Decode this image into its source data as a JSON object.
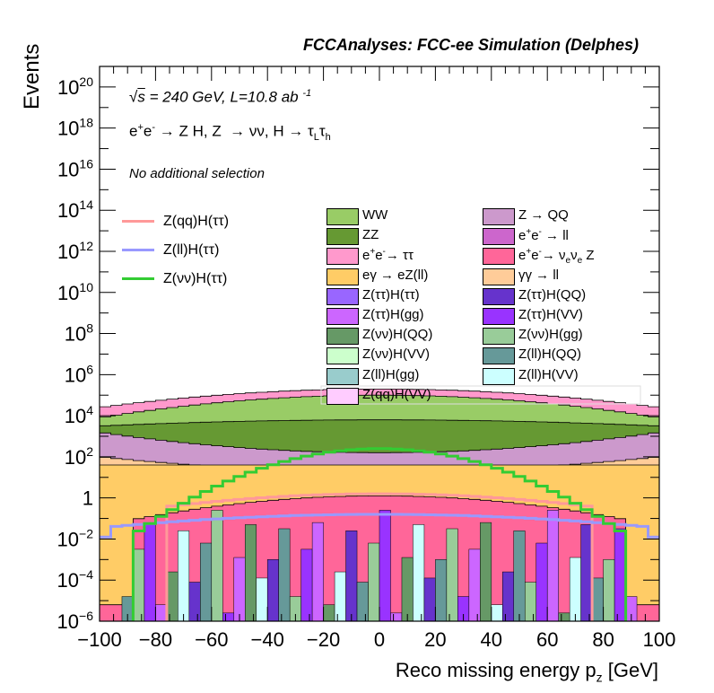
{
  "header": "FCCAnalyses: FCC-ee Simulation (Delphes)",
  "info": {
    "line1_pre": "s",
    "line1_post": " = 240 GeV, L=10.8 ab",
    "line1_exp": "-1",
    "process_html": "e<sup>+</sup>e<sup>-</sup> &rarr; Z H, Z &nbsp;&rarr; &nu;&nu;, H &rarr; &tau;<sub>L</sub>&tau;<sub>h</sub>",
    "selection": "No additional selection"
  },
  "axes": {
    "xlabel_html": "Reco missing energy p<sub>z</sub> [GeV]",
    "ylabel": "Events",
    "xticks": [
      "−100",
      "−80",
      "−60",
      "−40",
      "−20",
      "0",
      "20",
      "40",
      "60",
      "80",
      "100"
    ],
    "ytick_exps": [
      "−6",
      "−4",
      "−2",
      "",
      "2",
      "4",
      "6",
      "8",
      "10",
      "12",
      "14",
      "16",
      "18",
      "20"
    ]
  },
  "legend_lines": [
    {
      "label": "Z(qq)H(ττ)",
      "color": "#ff9999"
    },
    {
      "label": "Z(ll)H(ττ)",
      "color": "#9999ff"
    },
    {
      "label": "Z(νν)H(ττ)",
      "color": "#33cc33"
    }
  ],
  "legend_boxes": [
    {
      "label_html": "WW",
      "color": "#99cc66"
    },
    {
      "label_html": "Z &rarr; QQ",
      "color": "#cc99cc"
    },
    {
      "label_html": "ZZ",
      "color": "#669933"
    },
    {
      "label_html": "e<sup>+</sup>e<sup>-</sup> &rarr; ll",
      "color": "#cc66cc"
    },
    {
      "label_html": "e<sup>+</sup>e<sup>-</sup>&rarr; &tau;&tau;",
      "color": "#ff99cc"
    },
    {
      "label_html": "e<sup>+</sup>e<sup>-</sup>&rarr; &nu;<sub>e</sub>&nu;<sub>e</sub> Z",
      "color": "#ff6699"
    },
    {
      "label_html": "e&gamma; &rarr; eZ(ll)",
      "color": "#ffcc66"
    },
    {
      "label_html": "&gamma;&gamma; &rarr; ll",
      "color": "#ffcc99"
    },
    {
      "label_html": "Z(&tau;&tau;)H(&tau;&tau;)",
      "color": "#9966ff"
    },
    {
      "label_html": "Z(&tau;&tau;)H(QQ)",
      "color": "#6633cc"
    },
    {
      "label_html": "Z(&tau;&tau;)H(gg)",
      "color": "#cc66ff"
    },
    {
      "label_html": "Z(&tau;&tau;)H(VV)",
      "color": "#9933ff"
    },
    {
      "label_html": "Z(&nu;&nu;)H(QQ)",
      "color": "#669966"
    },
    {
      "label_html": "Z(&nu;&nu;)H(gg)",
      "color": "#99cc99"
    },
    {
      "label_html": "Z(&nu;&nu;)H(VV)",
      "color": "#ccffcc"
    },
    {
      "label_html": "Z(ll)H(QQ)",
      "color": "#669999"
    },
    {
      "label_html": "Z(ll)H(gg)",
      "color": "#99cccc"
    },
    {
      "label_html": "Z(ll)H(VV)",
      "color": "#ccffff"
    },
    {
      "label_html": "Z(qq)H(VV)",
      "color": "#ffccff"
    }
  ],
  "chart_data": {
    "type": "area",
    "xlabel": "Reco missing energy p_z [GeV]",
    "ylabel": "Events",
    "xlim": [
      -100,
      100
    ],
    "ylim": [
      1e-06,
      1e+21
    ],
    "yscale": "log",
    "bins": 50,
    "stack_top_boundaries": [
      {
        "name": "total",
        "color": "#ff99cc",
        "log10_edge": 4.4,
        "log10_center": 5.3
      },
      {
        "name": "WW",
        "color": "#99cc66",
        "log10_edge": 3.9,
        "log10_center": 5.0
      },
      {
        "name": "ZZ",
        "color": "#669933",
        "log10_edge": 3.5,
        "log10_center": 3.8
      },
      {
        "name": "Z to QQ",
        "color": "#cc99cc",
        "log10_edge": 3.2,
        "log10_center": 2.2
      },
      {
        "name": "gamma gamma to ll",
        "color": "#ffcc99",
        "log10_edge": 2.0,
        "log10_center": 1.3
      },
      {
        "name": "e gamma to eZ(ll)",
        "color": "#ffcc66",
        "log10_edge": 1.6,
        "log10_center": 1.6
      },
      {
        "name": "ee to nu nu Z",
        "color": "#ff6699",
        "log10_edge": -6.0,
        "log10_center": 0.0
      }
    ],
    "series": [
      {
        "name": "Z(qq)H(ττ)",
        "color": "#ff9999",
        "log10_center": 0.2
      },
      {
        "name": "Z(ll)H(ττ)",
        "color": "#9999ff",
        "log10_center": -0.8
      },
      {
        "name": "Z(νν)H(ττ)",
        "color": "#33cc33",
        "log10_center": 2.4
      }
    ]
  }
}
